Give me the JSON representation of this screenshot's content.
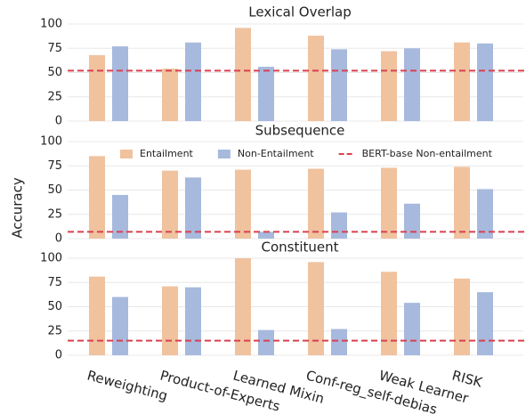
{
  "chart_data": [
    {
      "type": "bar",
      "title": "Lexical Overlap",
      "series": [
        {
          "color": "#f0c29e",
          "values": [
            68,
            54,
            96,
            88,
            72,
            81
          ]
        },
        {
          "color": "#a7b9dd",
          "values": [
            77,
            81,
            56,
            74,
            75,
            80
          ]
        }
      ],
      "baseline": 52,
      "baseline_color": "#d9404f",
      "ylim": [
        0,
        100
      ],
      "yticks": [
        0,
        25,
        50,
        75,
        100
      ],
      "grid": true
    },
    {
      "type": "bar",
      "title": "Subsequence",
      "ylabel": "Accuracy",
      "series": [
        {
          "name": "Entailment",
          "color": "#f0c29e",
          "values": [
            85,
            70,
            71,
            72,
            73,
            74
          ]
        },
        {
          "name": "Non-Entailment",
          "color": "#a7b9dd",
          "values": [
            45,
            63,
            7,
            27,
            36,
            51
          ]
        }
      ],
      "baseline": 7,
      "baseline_name": "BERT-base Non-entailment",
      "baseline_color": "#d9404f",
      "ylim": [
        0,
        100
      ],
      "yticks": [
        0,
        25,
        50,
        75,
        100
      ],
      "grid": true,
      "legend": "upper center"
    },
    {
      "type": "bar",
      "title": "Constituent",
      "categories": [
        "Reweighting",
        "Product-of-Experts",
        "Learned Mixin",
        "Conf-reg_self-debias",
        "Weak Learner",
        "RISK"
      ],
      "series": [
        {
          "color": "#f0c29e",
          "values": [
            81,
            71,
            100,
            96,
            86,
            79
          ]
        },
        {
          "color": "#a7b9dd",
          "values": [
            60,
            70,
            26,
            27,
            54,
            65
          ]
        }
      ],
      "baseline": 15,
      "baseline_color": "#d9404f",
      "ylim": [
        0,
        100
      ],
      "yticks": [
        0,
        25,
        50,
        75,
        100
      ],
      "grid": true
    }
  ]
}
